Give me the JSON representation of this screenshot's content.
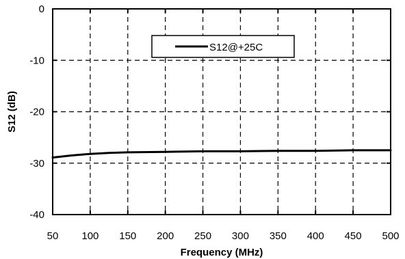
{
  "chart_data": {
    "type": "line",
    "title": "",
    "xlabel": "Frequency (MHz)",
    "ylabel": "S12  (dB)",
    "xlim": [
      50,
      500
    ],
    "ylim": [
      -40,
      0
    ],
    "x_ticks": [
      50,
      100,
      150,
      200,
      250,
      300,
      350,
      400,
      450,
      500
    ],
    "y_ticks": [
      0,
      -10,
      -20,
      -30,
      -40
    ],
    "x_tick_labels": [
      "50",
      "100",
      "150",
      "200",
      "250",
      "300",
      "350",
      "400",
      "450",
      "500"
    ],
    "y_tick_labels": [
      "0",
      "-10",
      "-20",
      "-30",
      "-40"
    ],
    "grid": true,
    "grid_style": "dashed",
    "legend_position": "top-center",
    "series": [
      {
        "name": "S12@+25C",
        "color": "#000000",
        "x": [
          50,
          75,
          100,
          125,
          150,
          200,
          250,
          300,
          350,
          400,
          450,
          500
        ],
        "y": [
          -28.9,
          -28.5,
          -28.2,
          -28.0,
          -27.9,
          -27.8,
          -27.7,
          -27.7,
          -27.6,
          -27.6,
          -27.5,
          -27.5
        ]
      }
    ]
  }
}
